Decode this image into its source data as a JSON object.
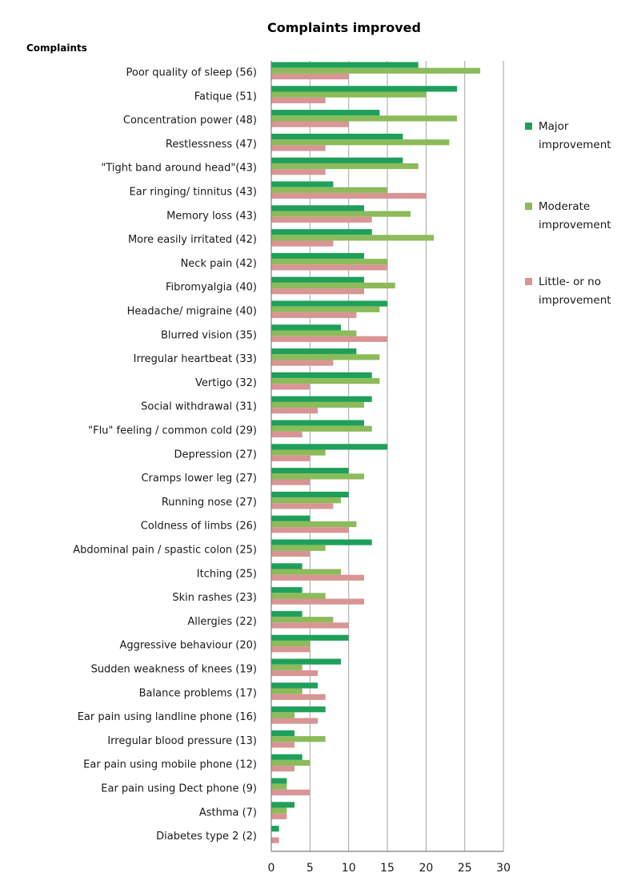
{
  "chart_data": {
    "type": "bar",
    "orientation": "horizontal",
    "title": "Complaints improved",
    "ylabel": "Complaints",
    "xlabel": "",
    "xlim": [
      0,
      30
    ],
    "xticks": [
      0,
      5,
      10,
      15,
      20,
      25,
      30
    ],
    "grid": true,
    "legend_position": "right",
    "categories": [
      "Poor quality of sleep (56)",
      "Fatique (51)",
      "Concentration power (48)",
      "Restlessness (47)",
      "\"Tight band around head\"(43)",
      "Ear ringing/ tinnitus (43)",
      "Memory loss (43)",
      "More easily irritated (42)",
      "Neck pain (42)",
      "Fibromyalgia (40)",
      "Headache/ migraine (40)",
      "Blurred vision (35)",
      "Irregular heartbeat (33)",
      "Vertigo (32)",
      "Social withdrawal (31)",
      "\"Flu\" feeling / common cold (29)",
      "Depression (27)",
      "Cramps lower leg (27)",
      "Running nose (27)",
      "Coldness of limbs (26)",
      "Abdominal pain / spastic colon (25)",
      "Itching (25)",
      "Skin rashes (23)",
      "Allergies (22)",
      "Aggressive behaviour (20)",
      "Sudden weakness of knees (19)",
      "Balance problems (17)",
      "Ear pain using landline phone (16)",
      "Irregular blood pressure (13)",
      "Ear pain using mobile phone (12)",
      "Ear pain using Dect phone (9)",
      "Asthma (7)",
      "Diabetes type 2 (2)"
    ],
    "series": [
      {
        "name": "Major improvement",
        "legend_lines": [
          "Major",
          "improvement"
        ],
        "color": "#1fa05a",
        "values": [
          19,
          24,
          14,
          17,
          17,
          8,
          12,
          13,
          12,
          12,
          15,
          9,
          11,
          13,
          13,
          12,
          15,
          10,
          10,
          5,
          13,
          4,
          4,
          4,
          10,
          9,
          6,
          7,
          3,
          4,
          2,
          3,
          1
        ]
      },
      {
        "name": "Moderate improvement",
        "legend_lines": [
          "Moderate",
          "improvement"
        ],
        "color": "#8cbb5a",
        "values": [
          27,
          20,
          24,
          23,
          19,
          15,
          18,
          21,
          15,
          16,
          14,
          11,
          14,
          14,
          12,
          13,
          7,
          12,
          9,
          11,
          7,
          9,
          7,
          8,
          5,
          4,
          4,
          3,
          7,
          5,
          2,
          2,
          0
        ]
      },
      {
        "name": "Little- or no improvement",
        "legend_lines": [
          "Little- or no",
          "improvement"
        ],
        "color": "#d99494",
        "values": [
          10,
          7,
          10,
          7,
          7,
          20,
          13,
          8,
          15,
          12,
          11,
          15,
          8,
          5,
          6,
          4,
          5,
          5,
          8,
          10,
          5,
          12,
          12,
          10,
          5,
          6,
          7,
          6,
          3,
          3,
          5,
          2,
          1
        ]
      }
    ]
  }
}
